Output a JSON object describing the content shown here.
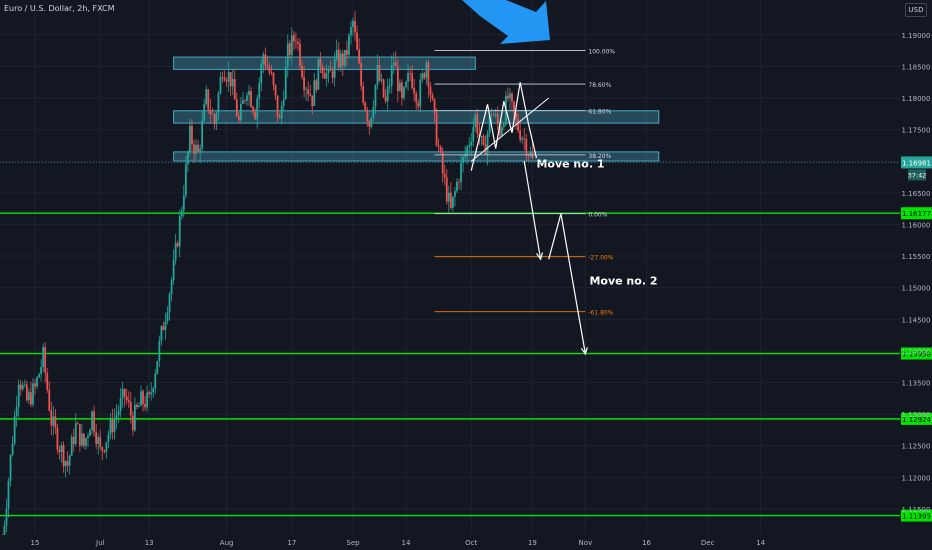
{
  "symbol": "Euro / U.S. Dollar, 2h, FXCM",
  "currency": "USD",
  "colors": {
    "bg": "#131722",
    "up": "#26a69a",
    "down": "#ef5350",
    "support": "#00e600",
    "zone": "#4aa8c4",
    "fib": "#d1d4dc",
    "fib_ext": "#f57c00",
    "arrow_blue": "#2196f3",
    "wick": "#9aa0a6"
  },
  "chart_data": {
    "type": "candlestick",
    "title": "",
    "ylim": [
      1.1085,
      1.1955
    ],
    "y_ticks": [
      "1.19000",
      "1.18500",
      "1.18000",
      "1.17500",
      "1.17000",
      "1.16500",
      "1.16000",
      "1.15500",
      "1.15000",
      "1.14500",
      "1.14000",
      "1.13500",
      "1.13000",
      "1.12500",
      "1.12000",
      "1.11500"
    ],
    "x_ticks": [
      {
        "label": "15",
        "d": 0
      },
      {
        "label": "Jul",
        "d": 16
      },
      {
        "label": "13",
        "d": 28
      },
      {
        "label": "Aug",
        "d": 47
      },
      {
        "label": "17",
        "d": 63
      },
      {
        "label": "Sep",
        "d": 78
      },
      {
        "label": "14",
        "d": 91
      },
      {
        "label": "Oct",
        "d": 107
      },
      {
        "label": "19",
        "d": 122
      },
      {
        "label": "Nov",
        "d": 135
      },
      {
        "label": "16",
        "d": 150
      },
      {
        "label": "Dec",
        "d": 165
      },
      {
        "label": "14",
        "d": 178
      }
    ],
    "price_path": [
      [
        -8,
        1.11
      ],
      [
        -6,
        1.123
      ],
      [
        -4,
        1.136
      ],
      [
        -2,
        1.132
      ],
      [
        0,
        1.134
      ],
      [
        2,
        1.139
      ],
      [
        4,
        1.129
      ],
      [
        6,
        1.125
      ],
      [
        8,
        1.122
      ],
      [
        10,
        1.128
      ],
      [
        12,
        1.125
      ],
      [
        14,
        1.13
      ],
      [
        16,
        1.124
      ],
      [
        18,
        1.127
      ],
      [
        20,
        1.13
      ],
      [
        22,
        1.133
      ],
      [
        24,
        1.129
      ],
      [
        26,
        1.132
      ],
      [
        28,
        1.132
      ],
      [
        30,
        1.139
      ],
      [
        32,
        1.146
      ],
      [
        34,
        1.153
      ],
      [
        36,
        1.163
      ],
      [
        38,
        1.174
      ],
      [
        40,
        1.171
      ],
      [
        42,
        1.18
      ],
      [
        44,
        1.176
      ],
      [
        46,
        1.185
      ],
      [
        48,
        1.183
      ],
      [
        50,
        1.176
      ],
      [
        52,
        1.182
      ],
      [
        54,
        1.178
      ],
      [
        56,
        1.187
      ],
      [
        58,
        1.183
      ],
      [
        60,
        1.176
      ],
      [
        62,
        1.187
      ],
      [
        64,
        1.19
      ],
      [
        66,
        1.183
      ],
      [
        68,
        1.18
      ],
      [
        70,
        1.186
      ],
      [
        72,
        1.183
      ],
      [
        74,
        1.186
      ],
      [
        76,
        1.186
      ],
      [
        78,
        1.192
      ],
      [
        80,
        1.182
      ],
      [
        82,
        1.176
      ],
      [
        84,
        1.184
      ],
      [
        86,
        1.179
      ],
      [
        88,
        1.186
      ],
      [
        90,
        1.179
      ],
      [
        92,
        1.184
      ],
      [
        94,
        1.18
      ],
      [
        96,
        1.186
      ],
      [
        98,
        1.176
      ],
      [
        100,
        1.168
      ],
      [
        102,
        1.162
      ],
      [
        104,
        1.168
      ],
      [
        106,
        1.172
      ],
      [
        108,
        1.177
      ],
      [
        110,
        1.171
      ],
      [
        112,
        1.178
      ],
      [
        114,
        1.175
      ],
      [
        116,
        1.18
      ],
      [
        118,
        1.176
      ],
      [
        120,
        1.1735
      ],
      [
        122,
        1.17
      ]
    ],
    "support_lines": [
      {
        "price": 1.16177,
        "label": "1.16177"
      },
      {
        "price": 1.13958,
        "label": "1.13958"
      },
      {
        "price": 1.12924,
        "label": "1.12924"
      },
      {
        "price": 1.11395,
        "label": "1.11395"
      }
    ],
    "current_price": {
      "price": 1.16981,
      "label": "1.16981",
      "countdown": "37:42"
    },
    "zones": [
      {
        "top": 1.186,
        "bottom": 1.185,
        "d1": 34,
        "d2": 108
      },
      {
        "top": 1.1775,
        "bottom": 1.1765,
        "d1": 34,
        "d2": 153
      },
      {
        "top": 1.171,
        "bottom": 1.1705,
        "d1": 34,
        "d2": 153
      }
    ],
    "fib_levels": [
      {
        "label": "100.00%",
        "price": 1.1875,
        "ext": false
      },
      {
        "label": "78.60%",
        "price": 1.1822,
        "ext": false
      },
      {
        "label": "61.80%",
        "price": 1.178,
        "ext": false
      },
      {
        "label": "38.20%",
        "price": 1.171,
        "ext": false
      },
      {
        "label": "0.00%",
        "price": 1.1617,
        "ext": false
      },
      {
        "label": "-27.00%",
        "price": 1.1549,
        "ext": true
      },
      {
        "label": "-61.80%",
        "price": 1.1462,
        "ext": true
      }
    ],
    "fib_range": {
      "d1": 98,
      "d2": 135
    },
    "pattern_path": [
      [
        107,
        1.1685
      ],
      [
        111,
        1.179
      ],
      [
        113,
        1.172
      ],
      [
        115,
        1.1795
      ],
      [
        117,
        1.1745
      ],
      [
        119,
        1.1825
      ],
      [
        121,
        1.176
      ],
      [
        123,
        1.1705
      ]
    ],
    "neckline": [
      [
        107,
        1.17
      ],
      [
        126,
        1.18
      ]
    ],
    "projection_path": [
      [
        120,
        1.17
      ],
      [
        124,
        1.1545
      ],
      [
        126,
        1.1545
      ],
      [
        129,
        1.1617
      ],
      [
        135,
        1.1395
      ]
    ],
    "annotations": [
      {
        "text": "Move no. 1",
        "d": 123,
        "price": 1.169
      },
      {
        "text": "Move no. 2",
        "d": 136,
        "price": 1.1505
      }
    ]
  }
}
